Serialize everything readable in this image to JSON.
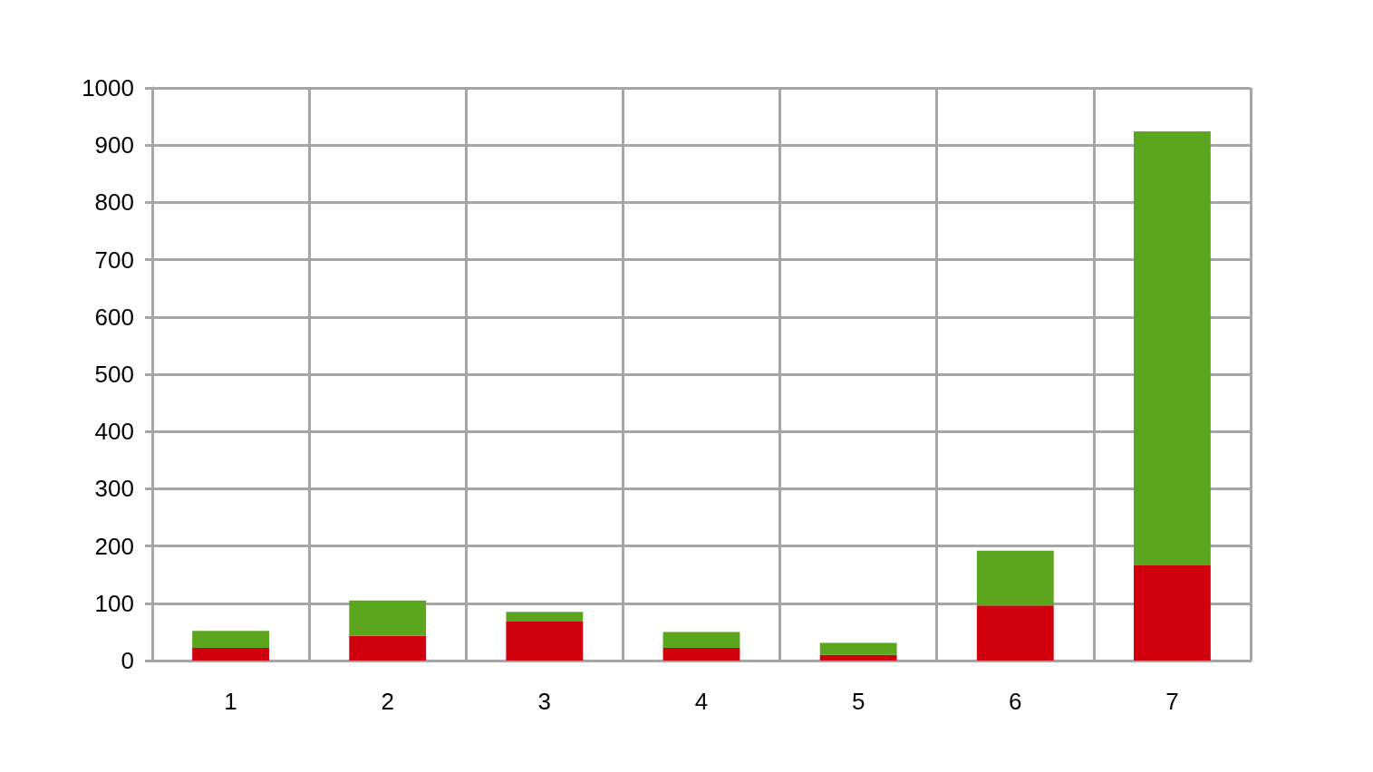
{
  "chart_data": {
    "type": "bar",
    "stacked": true,
    "categories": [
      "1",
      "2",
      "3",
      "4",
      "5",
      "6",
      "7"
    ],
    "series": [
      {
        "color": "#d0000e",
        "values": [
          22,
          43,
          68,
          22,
          10,
          96,
          166
        ]
      },
      {
        "color": "#5ca61f",
        "values": [
          30,
          62,
          17,
          28,
          21,
          96,
          758
        ]
      }
    ],
    "ylim": [
      0,
      1000
    ],
    "yticks": [
      0,
      100,
      200,
      300,
      400,
      500,
      600,
      700,
      800,
      900,
      1000
    ],
    "grid": true
  }
}
